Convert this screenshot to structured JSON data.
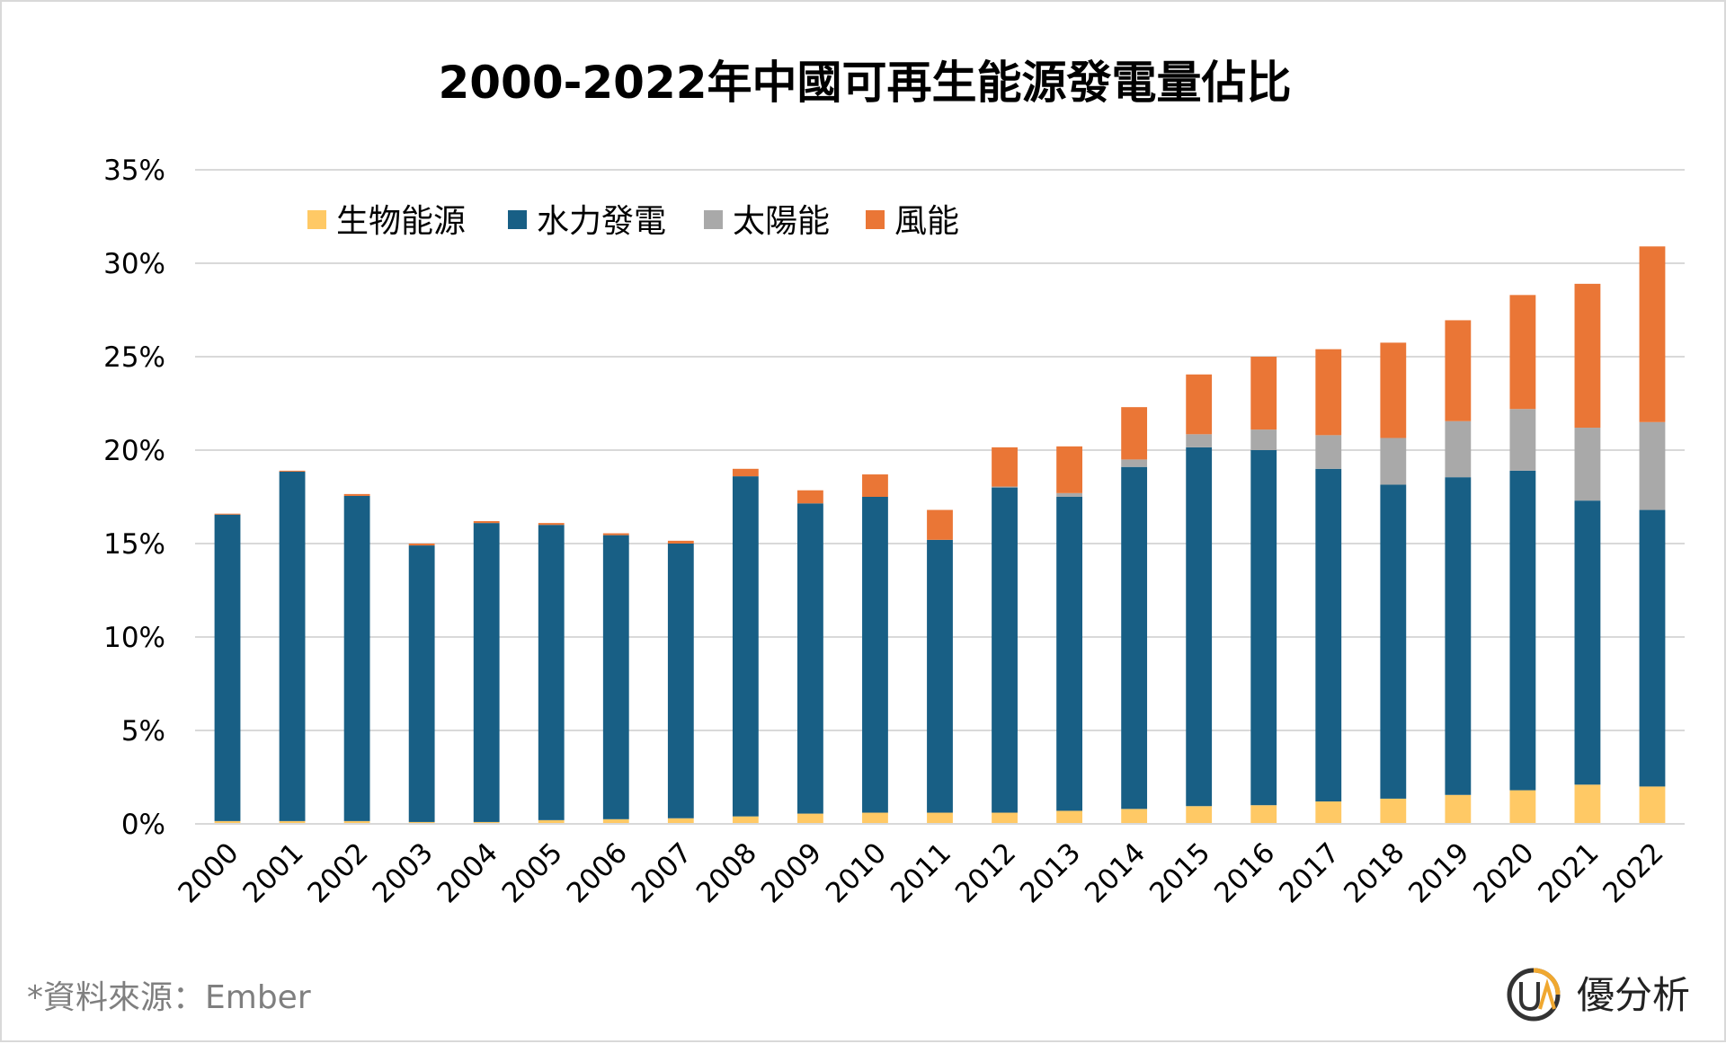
{
  "chart_data": {
    "type": "bar",
    "stacked": true,
    "title": "2000-2022年中國可再生能源發電量佔比",
    "categories": [
      "2000",
      "2001",
      "2002",
      "2003",
      "2004",
      "2005",
      "2006",
      "2007",
      "2008",
      "2009",
      "2010",
      "2011",
      "2012",
      "2013",
      "2014",
      "2015",
      "2016",
      "2017",
      "2018",
      "2019",
      "2020",
      "2021",
      "2022"
    ],
    "y_ticks": [
      "0%",
      "5%",
      "10%",
      "15%",
      "20%",
      "25%",
      "30%",
      "35%"
    ],
    "ylim": [
      0,
      35
    ],
    "grid": true,
    "legend_position": "top-left",
    "series": [
      {
        "name": "生物能源",
        "color": "#ffc965",
        "values": [
          0.15,
          0.15,
          0.15,
          0.1,
          0.1,
          0.2,
          0.25,
          0.3,
          0.4,
          0.55,
          0.6,
          0.6,
          0.6,
          0.7,
          0.8,
          0.95,
          1.0,
          1.2,
          1.35,
          1.55,
          1.8,
          2.1,
          2.0
        ]
      },
      {
        "name": "水力發電",
        "color": "#185f85",
        "values": [
          16.4,
          18.7,
          17.4,
          14.8,
          16.0,
          15.8,
          15.2,
          14.7,
          18.2,
          16.6,
          16.9,
          14.6,
          17.4,
          16.8,
          18.3,
          19.2,
          19.0,
          17.8,
          16.8,
          17.0,
          17.1,
          15.2,
          14.8
        ]
      },
      {
        "name": "太陽能",
        "color": "#a9a9a9",
        "values": [
          0,
          0,
          0,
          0,
          0,
          0,
          0,
          0,
          0,
          0,
          0,
          0,
          0.05,
          0.2,
          0.4,
          0.7,
          1.1,
          1.8,
          2.5,
          3.0,
          3.3,
          3.9,
          4.7
        ]
      },
      {
        "name": "風能",
        "color": "#ea7636",
        "values": [
          0.05,
          0.05,
          0.1,
          0.1,
          0.1,
          0.1,
          0.1,
          0.15,
          0.4,
          0.7,
          1.2,
          1.6,
          2.1,
          2.5,
          2.8,
          3.2,
          3.9,
          4.6,
          5.1,
          5.4,
          6.1,
          7.7,
          9.4
        ]
      }
    ]
  },
  "footer": {
    "source": "*資料來源：Ember",
    "brand_logo": "UA",
    "brand_name": "優分析"
  }
}
